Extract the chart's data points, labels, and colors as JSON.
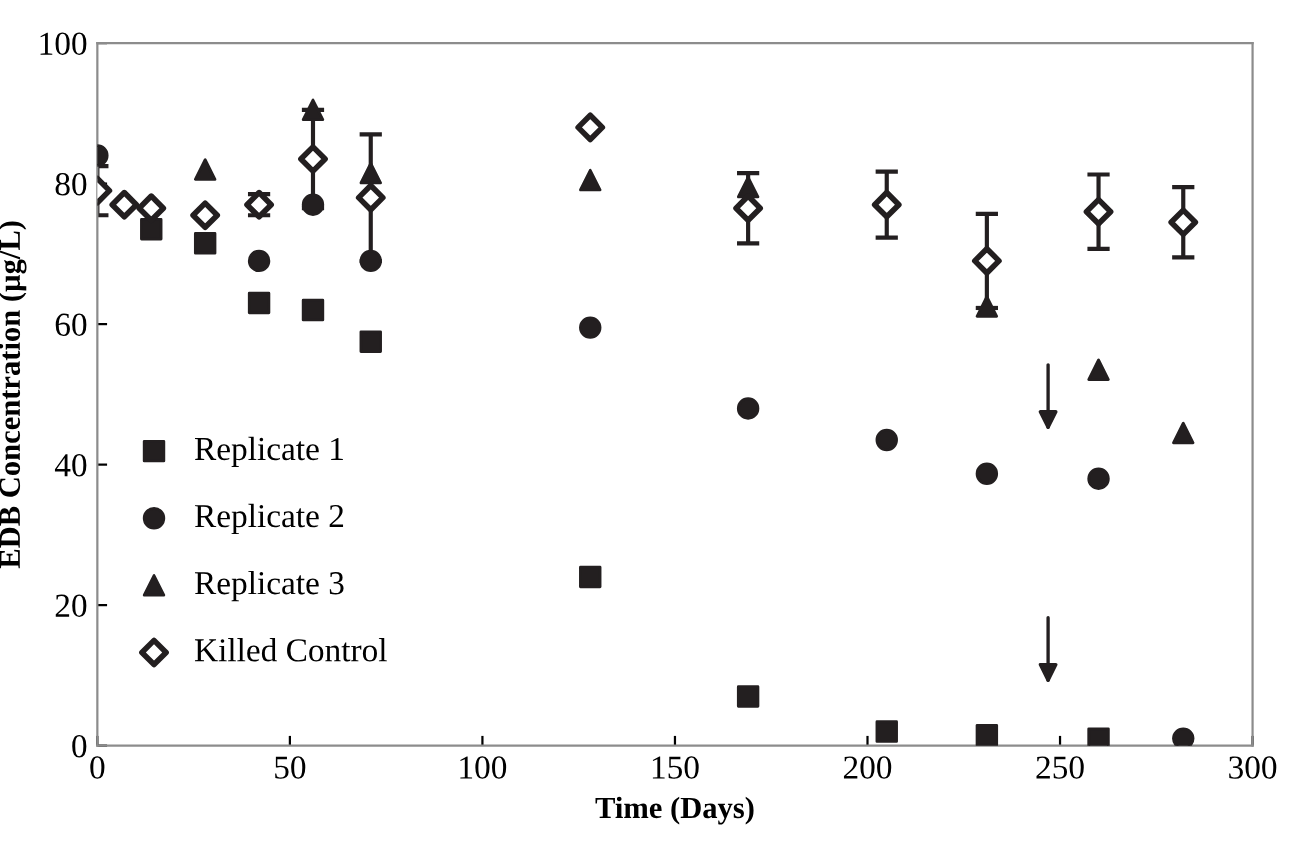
{
  "chart_data": {
    "type": "scatter",
    "xlabel": "Time (Days)",
    "ylabel": "EDB Concentration (µg/L)",
    "x": [
      0,
      7,
      14,
      28,
      42,
      56,
      71,
      128,
      169,
      205,
      231,
      260,
      282
    ],
    "xlim": [
      0,
      300
    ],
    "xticks": [
      0,
      50,
      100,
      150,
      200,
      250,
      300
    ],
    "ylim": [
      0,
      100
    ],
    "yticks": [
      0,
      20,
      40,
      60,
      80,
      100
    ],
    "grid": false,
    "legend": "left",
    "series": [
      {
        "name": "Replicate 1",
        "color": "#231f20",
        "marker": "square",
        "values": [
          null,
          null,
          73.5,
          71.5,
          63,
          62,
          57.5,
          24,
          7,
          2,
          1.5,
          1,
          null
        ]
      },
      {
        "name": "Replicate 2",
        "color": "#231f20",
        "marker": "circle",
        "values": [
          84,
          null,
          null,
          null,
          69,
          77,
          69,
          59.5,
          48,
          43.5,
          38.7,
          38,
          1
        ]
      },
      {
        "name": "Replicate 3",
        "color": "#231f20",
        "marker": "triangle",
        "values": [
          null,
          null,
          null,
          82,
          null,
          90.5,
          81.5,
          80.5,
          79.5,
          null,
          62.5,
          53.5,
          44.5
        ]
      },
      {
        "name": "Killed Control",
        "color": "#231f20",
        "marker": "diamond",
        "values": [
          79,
          77,
          76.5,
          75.5,
          77,
          83.5,
          78,
          88,
          76.5,
          77,
          69,
          76,
          74.5
        ],
        "errors": [
          3.5,
          null,
          null,
          null,
          1.5,
          7,
          9,
          null,
          5,
          4.7,
          6.7,
          5.3,
          5
        ]
      }
    ]
  }
}
